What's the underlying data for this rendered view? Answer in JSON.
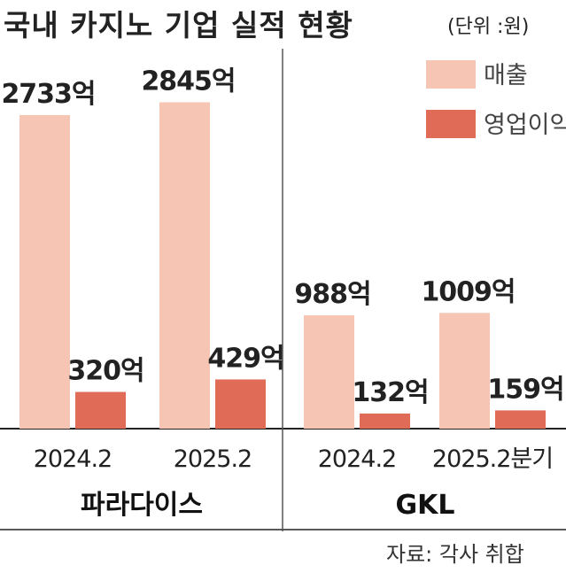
{
  "title": "국내 카지노 기업 실적 현황",
  "unit": "(단위 :원)",
  "source": "자료: 각사 취합",
  "colors": {
    "sales": "#F7C5B3",
    "operating_profit": "#E06C57",
    "axis": "#222222"
  },
  "chart_data": {
    "type": "bar",
    "title": "국내 카지노 기업 실적 현황",
    "unit": "(단위 :원)",
    "legend": {
      "position": "top-right",
      "entries": [
        "매출",
        "영업이익"
      ]
    },
    "ylim": [
      0,
      3000
    ],
    "groups": [
      {
        "name": "파라다이스",
        "periods": [
          {
            "label": "2024.2",
            "sales": 2733,
            "sales_label": "2733억",
            "profit": 320,
            "profit_label": "320억"
          },
          {
            "label": "2025.2",
            "sales": 2845,
            "sales_label": "2845억",
            "profit": 429,
            "profit_label": "429억"
          }
        ]
      },
      {
        "name": "GKL",
        "periods": [
          {
            "label": "2024.2",
            "sales": 988,
            "sales_label": "988억",
            "profit": 132,
            "profit_label": "132억"
          },
          {
            "label": "2025.2분기",
            "sales": 1009,
            "sales_label": "1009억",
            "profit": 159,
            "profit_label": "159억"
          }
        ]
      }
    ]
  }
}
